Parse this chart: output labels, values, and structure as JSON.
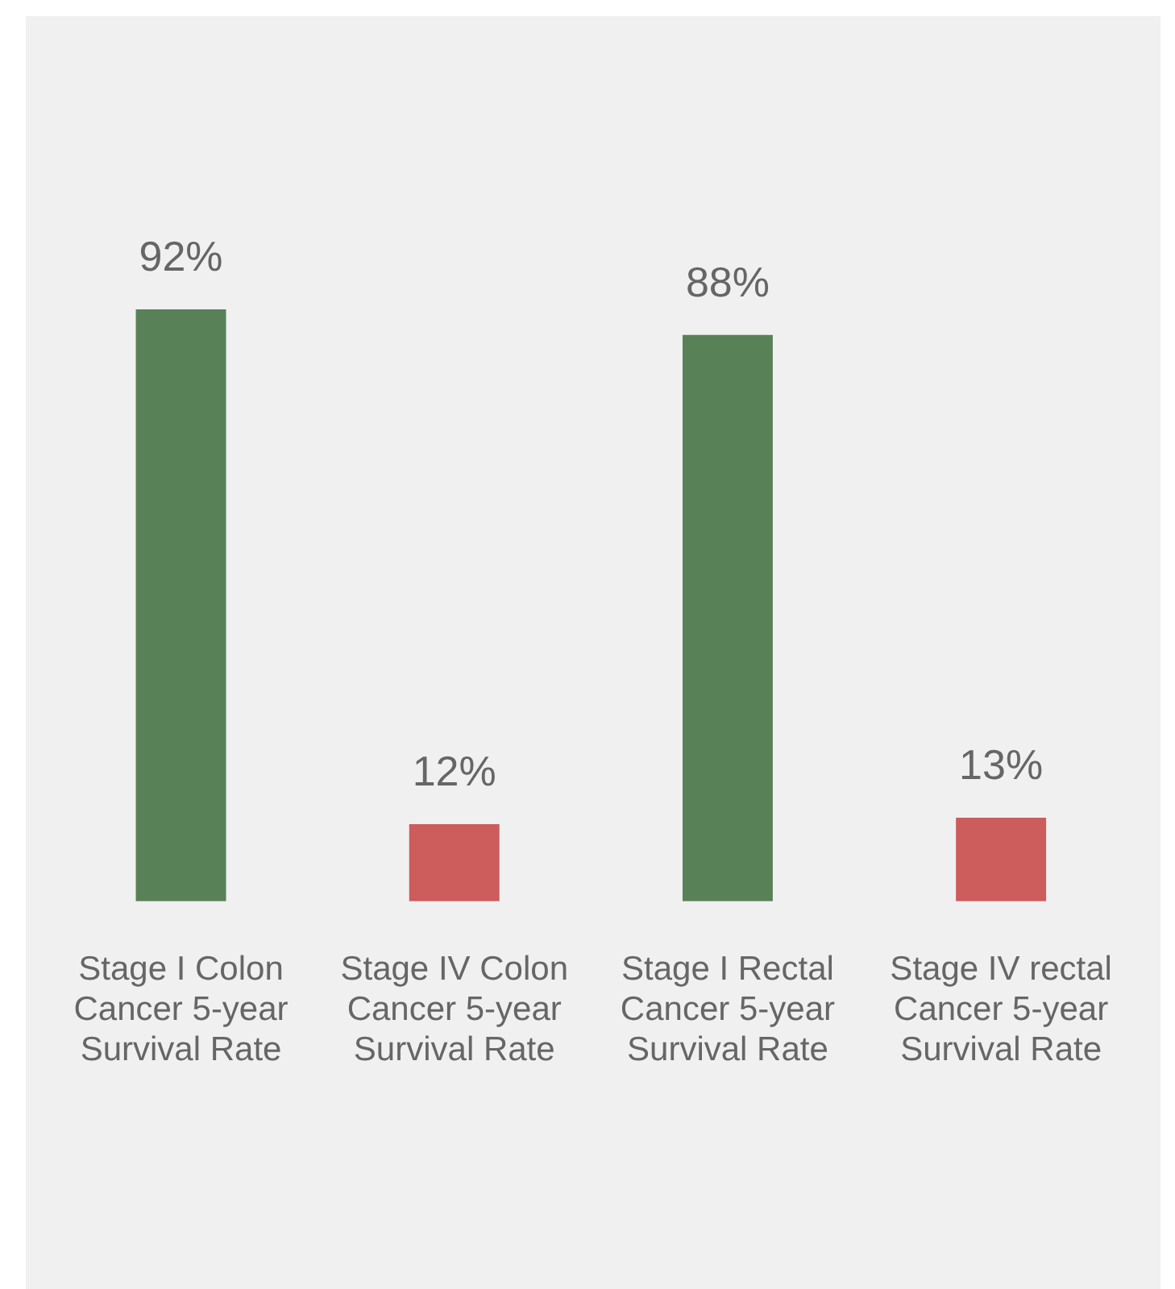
{
  "chart_data": {
    "type": "bar",
    "categories": [
      "Stage I Colon Cancer 5-year Survival Rate",
      "Stage IV Colon Cancer 5-year Survival Rate",
      "Stage I Rectal Cancer 5-year Survival Rate",
      "Stage IV rectal Cancer 5-year Survival Rate"
    ],
    "values": [
      92,
      12,
      88,
      13
    ],
    "colors": [
      "#588157",
      "#cd5c5c",
      "#588157",
      "#cd5c5c"
    ],
    "value_labels": [
      "92%",
      "12%",
      "88%",
      "13%"
    ],
    "grid": false,
    "legend": false,
    "tick_labels": "x"
  }
}
